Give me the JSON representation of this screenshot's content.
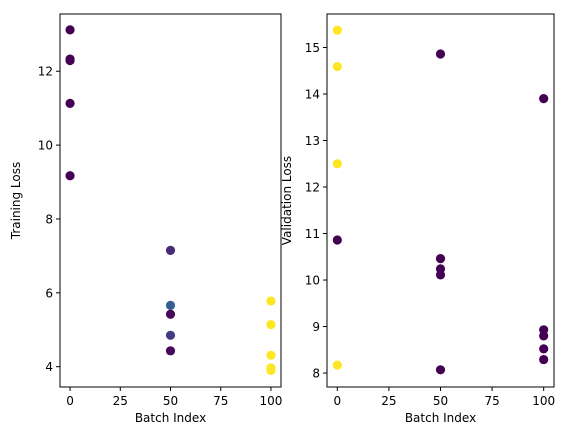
{
  "chart_data": [
    {
      "type": "scatter",
      "title": "",
      "xlabel": "Batch Index",
      "ylabel": "Training Loss",
      "xlim": [
        -5,
        105
      ],
      "ylim": [
        3.45,
        13.55
      ],
      "xticks": [
        0,
        25,
        50,
        75,
        100
      ],
      "yticks": [
        4,
        6,
        8,
        10,
        12
      ],
      "grid": false,
      "colormap": "viridis",
      "points": [
        {
          "x": 0,
          "y": 13.12,
          "c": 0.0
        },
        {
          "x": 0,
          "y": 12.33,
          "c": 0.0
        },
        {
          "x": 0,
          "y": 12.29,
          "c": 0.0
        },
        {
          "x": 0,
          "y": 11.13,
          "c": 0.0
        },
        {
          "x": 0,
          "y": 9.17,
          "c": 0.0
        },
        {
          "x": 50,
          "y": 7.15,
          "c": 0.12
        },
        {
          "x": 50,
          "y": 5.66,
          "c": 0.3
        },
        {
          "x": 50,
          "y": 5.42,
          "c": 0.02
        },
        {
          "x": 50,
          "y": 4.85,
          "c": 0.18
        },
        {
          "x": 50,
          "y": 4.43,
          "c": 0.02
        },
        {
          "x": 100,
          "y": 5.78,
          "c": 1.0
        },
        {
          "x": 100,
          "y": 5.14,
          "c": 1.0
        },
        {
          "x": 100,
          "y": 4.31,
          "c": 1.0
        },
        {
          "x": 100,
          "y": 3.97,
          "c": 1.0
        },
        {
          "x": 100,
          "y": 3.9,
          "c": 1.0
        }
      ]
    },
    {
      "type": "scatter",
      "title": "",
      "xlabel": "Batch Index",
      "ylabel": "Validation Loss",
      "xlim": [
        -5,
        105
      ],
      "ylim": [
        7.7,
        15.72
      ],
      "xticks": [
        0,
        25,
        50,
        75,
        100
      ],
      "yticks": [
        8,
        9,
        10,
        11,
        12,
        13,
        14,
        15
      ],
      "grid": false,
      "colormap": "viridis",
      "points": [
        {
          "x": 0,
          "y": 15.37,
          "c": 1.0
        },
        {
          "x": 0,
          "y": 14.59,
          "c": 1.0
        },
        {
          "x": 0,
          "y": 12.5,
          "c": 1.0
        },
        {
          "x": 0,
          "y": 10.86,
          "c": 0.0
        },
        {
          "x": 0,
          "y": 8.17,
          "c": 1.0
        },
        {
          "x": 50,
          "y": 14.86,
          "c": 0.0
        },
        {
          "x": 50,
          "y": 10.46,
          "c": 0.0
        },
        {
          "x": 50,
          "y": 10.24,
          "c": 0.0
        },
        {
          "x": 50,
          "y": 10.11,
          "c": 0.0
        },
        {
          "x": 50,
          "y": 8.07,
          "c": 0.0
        },
        {
          "x": 100,
          "y": 13.9,
          "c": 0.0
        },
        {
          "x": 100,
          "y": 8.93,
          "c": 0.0
        },
        {
          "x": 100,
          "y": 8.8,
          "c": 0.0
        },
        {
          "x": 100,
          "y": 8.52,
          "c": 0.0
        },
        {
          "x": 100,
          "y": 8.29,
          "c": 0.0
        }
      ]
    }
  ]
}
